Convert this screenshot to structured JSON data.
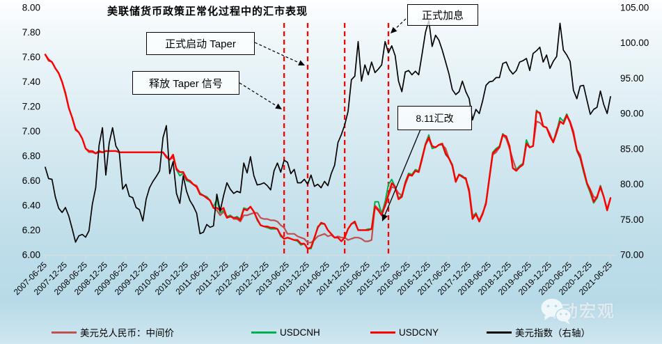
{
  "page": {
    "watermark_text": "涛动宏观"
  },
  "chart_data": {
    "type": "line",
    "title": "美联储货币政策正常化过程中的汇市表现",
    "start_month": "2007-06",
    "months_count": 169,
    "x_tick_labels": [
      "2007-06-25",
      "2007-12-25",
      "2008-06-25",
      "2008-12-25",
      "2009-06-25",
      "2009-12-25",
      "2010-06-25",
      "2010-12-25",
      "2011-06-25",
      "2011-12-25",
      "2012-06-25",
      "2012-12-25",
      "2013-06-25",
      "2013-12-25",
      "2014-06-25",
      "2014-12-25",
      "2015-06-25",
      "2015-12-25",
      "2016-06-25",
      "2016-12-25",
      "2017-06-25",
      "2017-12-25",
      "2018-06-25",
      "2018-12-25",
      "2019-06-25",
      "2019-12-25",
      "2020-06-25",
      "2020-12-25",
      "2021-06-25"
    ],
    "left_axis": {
      "min": 6.0,
      "max": 8.0,
      "step": 0.2,
      "ticks": [
        "8.00",
        "7.80",
        "7.60",
        "7.40",
        "7.20",
        "7.00",
        "6.80",
        "6.60",
        "6.40",
        "6.20",
        "6.00"
      ]
    },
    "right_axis": {
      "min": 70.0,
      "max": 105.0,
      "step": 5.0,
      "ticks": [
        "105.00",
        "100.00",
        "95.00",
        "90.00",
        "85.00",
        "80.00",
        "75.00",
        "70.00"
      ]
    },
    "event_lines": {
      "color": "#FF0000",
      "month_indices": [
        71,
        78,
        89,
        102
      ]
    },
    "annotations": [
      {
        "id": "rate-hike",
        "text": "正式加息"
      },
      {
        "id": "taper-start",
        "text": "正式启动 Taper"
      },
      {
        "id": "taper-signal",
        "text": "释放 Taper 信号"
      },
      {
        "id": "reform-811",
        "text": "8.11汇改"
      }
    ],
    "series": [
      {
        "id": "parity",
        "name": "美元兑人民币：中间价",
        "color": "#C0504D",
        "axis": "left",
        "values": [
          7.62,
          7.57,
          7.56,
          7.51,
          7.47,
          7.4,
          7.3,
          7.19,
          7.11,
          7.01,
          6.99,
          6.94,
          6.86,
          6.83,
          6.83,
          6.82,
          6.83,
          6.83,
          6.84,
          6.84,
          6.84,
          6.84,
          6.83,
          6.83,
          6.83,
          6.83,
          6.83,
          6.83,
          6.83,
          6.83,
          6.83,
          6.83,
          6.83,
          6.83,
          6.83,
          6.83,
          6.8,
          6.77,
          6.79,
          6.7,
          6.67,
          6.67,
          6.62,
          6.59,
          6.57,
          6.56,
          6.5,
          6.48,
          6.47,
          6.44,
          6.38,
          6.36,
          6.32,
          6.35,
          6.3,
          6.32,
          6.29,
          6.29,
          6.27,
          6.32,
          6.32,
          6.33,
          6.34,
          6.34,
          6.3,
          6.29,
          6.29,
          6.28,
          6.28,
          6.27,
          6.24,
          6.22,
          6.17,
          6.17,
          6.17,
          6.15,
          6.14,
          6.13,
          6.1,
          6.1,
          6.12,
          6.15,
          6.16,
          6.17,
          6.15,
          6.16,
          6.14,
          6.15,
          6.14,
          6.14,
          6.12,
          6.13,
          6.14,
          6.14,
          6.13,
          6.11,
          6.11,
          6.12,
          6.4,
          6.37,
          6.35,
          6.39,
          6.48,
          6.55,
          6.54,
          6.5,
          6.48,
          6.57,
          6.64,
          6.65,
          6.68,
          6.67,
          6.77,
          6.89,
          6.94,
          6.87,
          6.87,
          6.89,
          6.89,
          6.86,
          6.78,
          6.73,
          6.6,
          6.65,
          6.63,
          6.61,
          6.53,
          6.32,
          6.33,
          6.28,
          6.34,
          6.41,
          6.62,
          6.81,
          6.83,
          6.87,
          6.97,
          6.94,
          6.86,
          6.77,
          6.69,
          6.71,
          6.73,
          6.9,
          6.87,
          6.88,
          7.08,
          7.07,
          7.04,
          7.03,
          6.98,
          6.91,
          7.01,
          7.08,
          7.06,
          7.13,
          7.08,
          7.0,
          6.85,
          6.81,
          6.69,
          6.58,
          6.53,
          6.47,
          6.46,
          6.56,
          6.47,
          6.37,
          6.46
        ]
      },
      {
        "id": "usdcnh",
        "name": "USDCNH",
        "color": "#00B050",
        "axis": "left",
        "values": [
          null,
          null,
          null,
          null,
          null,
          null,
          null,
          null,
          null,
          null,
          null,
          null,
          null,
          null,
          null,
          null,
          null,
          null,
          null,
          null,
          null,
          null,
          null,
          null,
          null,
          null,
          null,
          null,
          null,
          null,
          null,
          null,
          null,
          null,
          null,
          null,
          null,
          null,
          null,
          6.69,
          6.64,
          6.66,
          6.6,
          6.59,
          6.57,
          6.55,
          6.5,
          6.48,
          6.47,
          6.44,
          6.39,
          6.45,
          6.34,
          6.36,
          6.31,
          6.32,
          6.3,
          6.31,
          6.29,
          6.38,
          6.37,
          6.39,
          6.35,
          6.28,
          6.24,
          6.23,
          6.22,
          6.21,
          6.21,
          6.21,
          6.15,
          6.13,
          6.14,
          6.13,
          6.12,
          6.11,
          6.08,
          6.09,
          6.05,
          6.05,
          6.13,
          6.23,
          6.25,
          6.25,
          6.2,
          6.17,
          6.14,
          6.14,
          6.11,
          6.14,
          6.21,
          6.25,
          6.26,
          6.2,
          6.2,
          6.2,
          6.21,
          6.21,
          6.43,
          6.43,
          6.33,
          6.43,
          6.57,
          6.61,
          6.55,
          6.46,
          6.48,
          6.59,
          6.66,
          6.65,
          6.69,
          6.68,
          6.79,
          6.9,
          6.97,
          6.86,
          6.87,
          6.89,
          6.89,
          6.81,
          6.78,
          6.73,
          6.6,
          6.65,
          6.64,
          6.61,
          6.51,
          6.3,
          6.34,
          6.27,
          6.33,
          6.43,
          6.63,
          6.83,
          6.86,
          6.88,
          6.98,
          6.95,
          6.88,
          6.7,
          6.69,
          6.72,
          6.74,
          6.93,
          6.87,
          6.88,
          7.17,
          7.14,
          7.04,
          7.03,
          6.96,
          6.92,
          7.0,
          7.11,
          7.08,
          7.14,
          7.07,
          6.97,
          6.84,
          6.78,
          6.67,
          6.57,
          6.5,
          6.42,
          6.46,
          6.56,
          6.47,
          6.36,
          6.46
        ]
      },
      {
        "id": "usdcny",
        "name": "USDCNY",
        "color": "#FF0000",
        "axis": "left",
        "values": [
          7.62,
          7.58,
          7.56,
          7.51,
          7.47,
          7.4,
          7.31,
          7.19,
          7.11,
          7.02,
          6.99,
          6.94,
          6.86,
          6.84,
          6.84,
          6.82,
          6.84,
          6.83,
          6.84,
          6.84,
          6.84,
          6.84,
          6.83,
          6.83,
          6.83,
          6.83,
          6.83,
          6.83,
          6.83,
          6.83,
          6.83,
          6.83,
          6.83,
          6.83,
          6.83,
          6.83,
          6.79,
          6.77,
          6.81,
          6.69,
          6.67,
          6.67,
          6.61,
          6.6,
          6.57,
          6.55,
          6.49,
          6.48,
          6.46,
          6.44,
          6.38,
          6.38,
          6.36,
          6.38,
          6.3,
          6.31,
          6.3,
          6.3,
          6.28,
          6.37,
          6.36,
          6.39,
          6.35,
          6.29,
          6.24,
          6.23,
          6.23,
          6.22,
          6.22,
          6.21,
          6.16,
          6.13,
          6.14,
          6.13,
          6.12,
          6.12,
          6.09,
          6.09,
          6.05,
          6.06,
          6.14,
          6.22,
          6.26,
          6.25,
          6.2,
          6.17,
          6.14,
          6.14,
          6.11,
          6.14,
          6.21,
          6.25,
          6.27,
          6.2,
          6.2,
          6.2,
          6.2,
          6.21,
          6.39,
          6.36,
          6.32,
          6.4,
          6.49,
          6.58,
          6.55,
          6.45,
          6.47,
          6.58,
          6.65,
          6.64,
          6.68,
          6.67,
          6.78,
          6.89,
          6.95,
          6.88,
          6.87,
          6.89,
          6.9,
          6.82,
          6.78,
          6.72,
          6.59,
          6.65,
          6.63,
          6.62,
          6.51,
          6.29,
          6.33,
          6.27,
          6.33,
          6.42,
          6.62,
          6.82,
          6.85,
          6.87,
          6.97,
          6.96,
          6.88,
          6.7,
          6.68,
          6.71,
          6.73,
          6.9,
          6.87,
          6.88,
          7.16,
          7.15,
          7.04,
          7.03,
          6.96,
          6.91,
          6.99,
          7.08,
          7.06,
          7.13,
          7.07,
          6.98,
          6.85,
          6.79,
          6.69,
          6.58,
          6.52,
          6.43,
          6.47,
          6.55,
          6.47,
          6.36,
          6.46
        ]
      },
      {
        "id": "dollar-index",
        "name": "美元指数（右轴）",
        "color": "#000000",
        "axis": "right",
        "values": [
          82.4,
          80.8,
          80.7,
          78.2,
          76.6,
          76.0,
          76.7,
          75.5,
          73.7,
          71.8,
          72.7,
          72.9,
          72.5,
          73.4,
          77.2,
          79.5,
          85.5,
          88.0,
          81.3,
          85.8,
          88.0,
          85.4,
          84.6,
          79.3,
          80.0,
          78.3,
          78.1,
          76.7,
          76.4,
          74.8,
          77.9,
          79.5,
          80.4,
          81.1,
          81.9,
          86.6,
          88.3,
          81.5,
          83.2,
          78.7,
          77.3,
          81.2,
          79.0,
          77.7,
          76.9,
          75.9,
          73.0,
          73.2,
          74.3,
          73.9,
          74.1,
          78.6,
          76.2,
          78.4,
          80.2,
          79.3,
          78.7,
          79.0,
          78.8,
          83.0,
          81.6,
          83.9,
          81.2,
          79.9,
          80.0,
          80.2,
          79.8,
          79.2,
          81.9,
          83.0,
          81.7,
          83.4,
          83.1,
          81.5,
          82.1,
          80.2,
          80.2,
          80.7,
          80.0,
          81.3,
          79.7,
          80.0,
          79.5,
          80.4,
          79.8,
          81.5,
          82.7,
          85.9,
          87.0,
          88.4,
          90.3,
          94.8,
          95.3,
          100.2,
          94.6,
          96.9,
          95.5,
          97.3,
          95.8,
          96.3,
          96.9,
          100.2,
          98.6,
          99.6,
          98.2,
          94.6,
          93.1,
          95.9,
          96.1,
          95.5,
          96.0,
          95.5,
          98.4,
          101.5,
          103.2,
          99.5,
          101.1,
          100.4,
          99.0,
          97.3,
          95.6,
          93.4,
          92.7,
          93.1,
          94.6,
          93.1,
          92.1,
          89.1,
          90.6,
          90.0,
          91.8,
          94.0,
          94.5,
          94.6,
          95.1,
          95.1,
          97.1,
          97.3,
          96.2,
          95.6,
          96.1,
          97.3,
          97.5,
          97.8,
          96.1,
          98.5,
          98.9,
          99.4,
          97.3,
          98.3,
          96.4,
          97.4,
          98.1,
          102.8,
          99.0,
          98.3,
          97.4,
          93.3,
          92.1,
          93.9,
          94.0,
          91.9,
          89.9,
          90.6,
          90.9,
          93.2,
          91.3,
          90.0,
          92.4
        ]
      }
    ]
  }
}
